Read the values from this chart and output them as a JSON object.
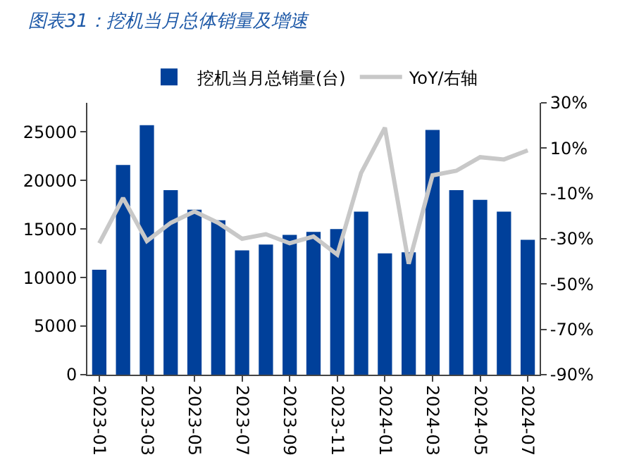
{
  "chart_data": {
    "type": "bar",
    "title": "图表31：挖机当月总体销量及增速",
    "categories": [
      "2023-01",
      null,
      "2023-03",
      null,
      "2023-05",
      null,
      "2023-07",
      null,
      "2023-09",
      null,
      "2023-11",
      null,
      "2024-01",
      null,
      "2024-03",
      null,
      "2024-05",
      null,
      "2024-07"
    ],
    "series": [
      {
        "name": "挖机当月总销量(台)",
        "color": "#00409a",
        "values": [
          10800,
          21600,
          25700,
          19000,
          17000,
          15900,
          12800,
          13400,
          14400,
          14700,
          15000,
          16800,
          12500,
          12600,
          25200,
          19000,
          18000,
          16800,
          13900
        ]
      },
      {
        "name": "YoY/右轴",
        "type": "line",
        "axis": "y2",
        "color": "#c8c8c8",
        "values": [
          -32,
          -12,
          -31,
          -23,
          -18,
          -23,
          -30,
          -28,
          -32,
          -29,
          -37,
          -1,
          19,
          -41,
          -2,
          0,
          6,
          5,
          9
        ]
      }
    ],
    "ylim": [
      0,
      28000
    ],
    "yticks": [
      0,
      5000,
      10000,
      15000,
      20000,
      25000
    ],
    "y2lim": [
      -90,
      30
    ],
    "y2ticks": [
      {
        "value": -90,
        "label": "-90%"
      },
      {
        "value": -70,
        "label": "-70%"
      },
      {
        "value": -50,
        "label": "-50%"
      },
      {
        "value": -30,
        "label": "-30%"
      },
      {
        "value": -10,
        "label": "-10%"
      },
      {
        "value": 10,
        "label": "10%"
      },
      {
        "value": 30,
        "label": "30%"
      }
    ],
    "grid": false,
    "legend": "top",
    "marker": "none",
    "line_style": "solid"
  }
}
